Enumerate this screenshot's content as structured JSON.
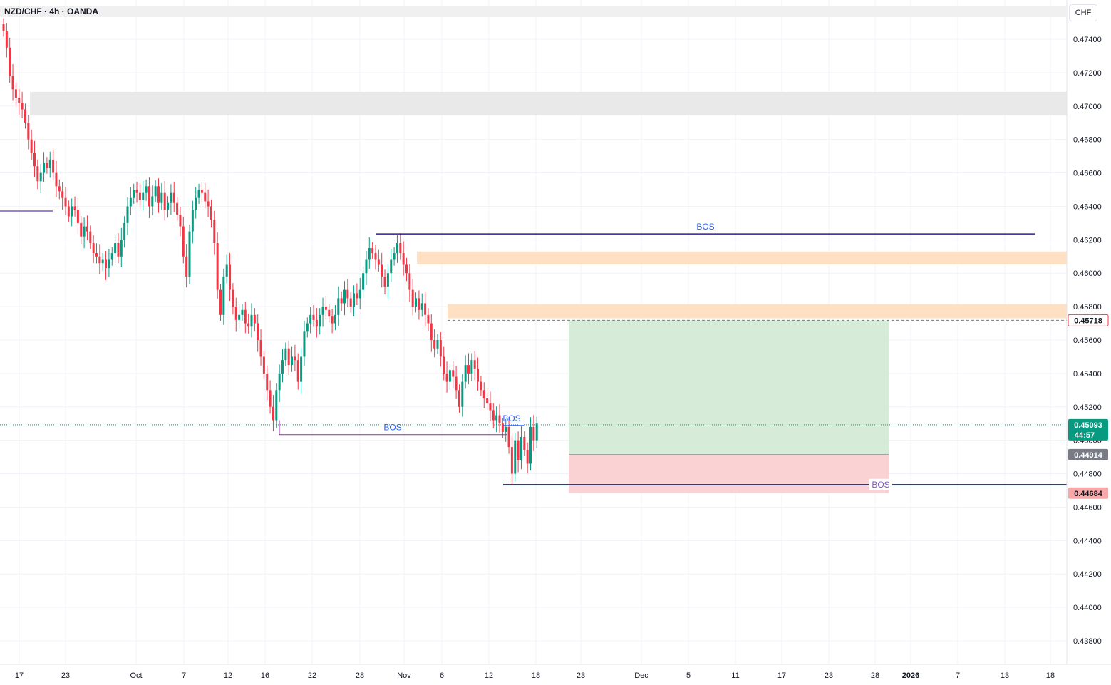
{
  "header": {
    "symbol_title": "NZD/CHF · 4h · OANDA",
    "currency": "CHF"
  },
  "colors": {
    "up": "#089981",
    "down": "#f23645",
    "bos_blue": "#2962ff",
    "bos_purple": "#311b92",
    "supply_zone": "#ffe0c2",
    "grey_zone": "#e9e9e9",
    "target_zone": "#d7ecd8",
    "stop_zone": "#fbd2d4"
  },
  "chart_data": {
    "type": "candlestick",
    "title": "NZD/CHF · 4h · OANDA",
    "ylabel": "CHF",
    "ylim": [
      0.437,
      0.476
    ],
    "y_ticks": [
      0.474,
      0.472,
      0.47,
      0.468,
      0.466,
      0.464,
      0.462,
      0.46,
      0.458,
      0.456,
      0.454,
      0.452,
      0.45,
      0.448,
      0.446,
      0.444,
      0.442,
      0.44,
      0.438
    ],
    "y_tick_labels": [
      "0.47400",
      "0.47200",
      "0.47000",
      "0.46800",
      "0.46600",
      "0.46400",
      "0.46200",
      "0.46000",
      "0.45800",
      "0.45600",
      "0.45400",
      "0.45200",
      "0.45000",
      "0.44800",
      "0.44600",
      "0.44400",
      "0.44200",
      "0.44000",
      "0.43800"
    ],
    "x_ticks": [
      "17",
      "23",
      "Oct",
      "7",
      "12",
      "16",
      "22",
      "28",
      "Nov",
      "6",
      "12",
      "18",
      "23",
      "Dec",
      "5",
      "11",
      "17",
      "23",
      "28",
      "2026",
      "7",
      "13",
      "18"
    ],
    "grid": true,
    "series": [
      {
        "close_path": [
          [
            "17",
            0.4745
          ],
          [
            "",
            0.4735
          ],
          [
            "",
            0.4718
          ],
          [
            "",
            0.471
          ],
          [
            "",
            0.4705
          ],
          [
            "",
            0.4702
          ],
          [
            "",
            0.4698
          ],
          [
            "",
            0.469
          ],
          [
            "",
            0.468
          ],
          [
            "",
            0.4672
          ],
          [
            "",
            0.4664
          ],
          [
            "",
            0.4655
          ],
          [
            "",
            0.466
          ],
          [
            "",
            0.4666
          ],
          [
            "",
            0.4663
          ],
          [
            "",
            0.4668
          ],
          [
            "",
            0.466
          ],
          [
            "",
            0.4652
          ],
          [
            "",
            0.4649
          ],
          [
            "23",
            0.4645
          ],
          [
            "",
            0.464
          ],
          [
            "",
            0.4634
          ],
          [
            "",
            0.464
          ],
          [
            "",
            0.4638
          ],
          [
            "",
            0.463
          ],
          [
            "",
            0.4622
          ],
          [
            "",
            0.4628
          ],
          [
            "",
            0.4625
          ],
          [
            "",
            0.4618
          ],
          [
            "",
            0.4612
          ],
          [
            "",
            0.461
          ],
          [
            "",
            0.4606
          ],
          [
            "",
            0.4608
          ],
          [
            "",
            0.4603
          ],
          [
            "",
            0.4608
          ],
          [
            "",
            0.4612
          ],
          [
            "",
            0.4618
          ],
          [
            "",
            0.461
          ],
          [
            "",
            0.462
          ],
          [
            "",
            0.463
          ],
          [
            "",
            0.464
          ],
          [
            "",
            0.4645
          ],
          [
            "",
            0.465
          ],
          [
            "Oct",
            0.4648
          ],
          [
            "",
            0.4644
          ],
          [
            "",
            0.4648
          ],
          [
            "",
            0.4652
          ],
          [
            "",
            0.464
          ],
          [
            "",
            0.4646
          ],
          [
            "",
            0.4652
          ],
          [
            "",
            0.4642
          ],
          [
            "",
            0.4648
          ],
          [
            "",
            0.4638
          ],
          [
            "",
            0.4642
          ],
          [
            "7",
            0.4648
          ],
          [
            "",
            0.4642
          ],
          [
            "",
            0.4635
          ],
          [
            "",
            0.4628
          ],
          [
            "",
            0.461
          ],
          [
            "",
            0.4598
          ],
          [
            "",
            0.4625
          ],
          [
            "",
            0.4638
          ],
          [
            "",
            0.4645
          ],
          [
            "",
            0.465
          ],
          [
            "",
            0.4648
          ],
          [
            "",
            0.4643
          ],
          [
            "",
            0.464
          ],
          [
            "12",
            0.4632
          ],
          [
            "",
            0.4618
          ],
          [
            "",
            0.459
          ],
          [
            "",
            0.4575
          ],
          [
            "",
            0.4598
          ],
          [
            "",
            0.4605
          ],
          [
            "",
            0.459
          ],
          [
            "",
            0.458
          ],
          [
            "",
            0.4572
          ],
          [
            "",
            0.4575
          ],
          [
            "",
            0.4578
          ],
          [
            "",
            0.457
          ],
          [
            "",
            0.4568
          ],
          [
            "",
            0.4575
          ],
          [
            "",
            0.457
          ],
          [
            "16",
            0.456
          ],
          [
            "",
            0.455
          ],
          [
            "",
            0.454
          ],
          [
            "",
            0.453
          ],
          [
            "",
            0.452
          ],
          [
            "",
            0.4512
          ],
          [
            "",
            0.453
          ],
          [
            "",
            0.454
          ],
          [
            "",
            0.4548
          ],
          [
            "",
            0.4555
          ],
          [
            "",
            0.4545
          ],
          [
            "",
            0.455
          ],
          [
            "",
            0.4548
          ],
          [
            "",
            0.4535
          ],
          [
            "",
            0.455
          ],
          [
            "",
            0.4565
          ],
          [
            "",
            0.457
          ],
          [
            "22",
            0.4575
          ],
          [
            "",
            0.4572
          ],
          [
            "",
            0.4568
          ],
          [
            "",
            0.4575
          ],
          [
            "",
            0.458
          ],
          [
            "",
            0.4578
          ],
          [
            "",
            0.4574
          ],
          [
            "",
            0.457
          ],
          [
            "",
            0.4575
          ],
          [
            "",
            0.4585
          ],
          [
            "",
            0.4582
          ],
          [
            "",
            0.459
          ],
          [
            "",
            0.4585
          ],
          [
            "",
            0.458
          ],
          [
            "28",
            0.4588
          ],
          [
            "",
            0.4585
          ],
          [
            "",
            0.459
          ],
          [
            "",
            0.46
          ],
          [
            "",
            0.4608
          ],
          [
            "",
            0.4615
          ],
          [
            "",
            0.4612
          ],
          [
            "",
            0.4608
          ],
          [
            "",
            0.4605
          ],
          [
            "",
            0.4598
          ],
          [
            "",
            0.4592
          ],
          [
            "",
            0.46
          ],
          [
            "Nov",
            0.4608
          ],
          [
            "",
            0.4612
          ],
          [
            "",
            0.4618
          ],
          [
            "",
            0.4612
          ],
          [
            "",
            0.4605
          ],
          [
            "",
            0.46
          ],
          [
            "",
            0.459
          ],
          [
            "",
            0.458
          ],
          [
            "",
            0.4585
          ],
          [
            "",
            0.4578
          ],
          [
            "",
            0.4582
          ],
          [
            "",
            0.4575
          ],
          [
            "6",
            0.457
          ],
          [
            "",
            0.456
          ],
          [
            "",
            0.4555
          ],
          [
            "",
            0.456
          ],
          [
            "",
            0.455
          ],
          [
            "",
            0.454
          ],
          [
            "",
            0.4535
          ],
          [
            "",
            0.4542
          ],
          [
            "",
            0.4538
          ],
          [
            "",
            0.453
          ],
          [
            "",
            0.452
          ],
          [
            "",
            0.4535
          ],
          [
            "",
            0.4545
          ],
          [
            "",
            0.454
          ],
          [
            "",
            0.4548
          ],
          [
            "",
            0.4543
          ],
          [
            "",
            0.4535
          ],
          [
            "",
            0.453
          ],
          [
            "",
            0.4525
          ],
          [
            "",
            0.4522
          ],
          [
            "",
            0.4518
          ],
          [
            "",
            0.4512
          ],
          [
            "",
            0.4515
          ],
          [
            "",
            0.451
          ],
          [
            "12",
            0.4505
          ],
          [
            "",
            0.4508
          ],
          [
            "",
            0.4496
          ],
          [
            "",
            0.448
          ],
          [
            "",
            0.45
          ],
          [
            "",
            0.4488
          ],
          [
            "",
            0.4502
          ],
          [
            "",
            0.4494
          ],
          [
            "",
            0.4486
          ],
          [
            "",
            0.4508
          ],
          [
            "",
            0.45
          ],
          [
            "",
            0.451
          ]
        ]
      }
    ],
    "annotations": {
      "bos_levels": [
        {
          "label": "BOS",
          "price": 0.46235,
          "color": "#311b92"
        },
        {
          "label": "BOS",
          "price": 0.45034,
          "color": "#9c27b0"
        },
        {
          "label": "BOS",
          "price": 0.45088,
          "color": "#2962ff"
        },
        {
          "label": "BOS",
          "price": 0.44735,
          "color": "#1a3fa6"
        }
      ],
      "grey_zone": [
        0.46945,
        0.47085
      ],
      "supply_zones": [
        [
          0.46053,
          0.4613
        ],
        [
          0.4573,
          0.45815
        ]
      ],
      "position": {
        "entry": 0.44914,
        "target": 0.45718,
        "stop": 0.44684
      }
    },
    "price_tags": [
      {
        "price": 0.45718,
        "text": "0.45718",
        "bg": "#ffffff",
        "fg": "#131722"
      },
      {
        "price": 0.45093,
        "text": "0.45093",
        "sub": "44:57",
        "bg": "#089981",
        "fg": "#ffffff"
      },
      {
        "price": 0.44914,
        "text": "0.44914",
        "bg": "#787b86",
        "fg": "#ffffff"
      },
      {
        "price": 0.44684,
        "text": "0.44684",
        "bg": "#f7a9a9",
        "fg": "#131722"
      }
    ]
  }
}
